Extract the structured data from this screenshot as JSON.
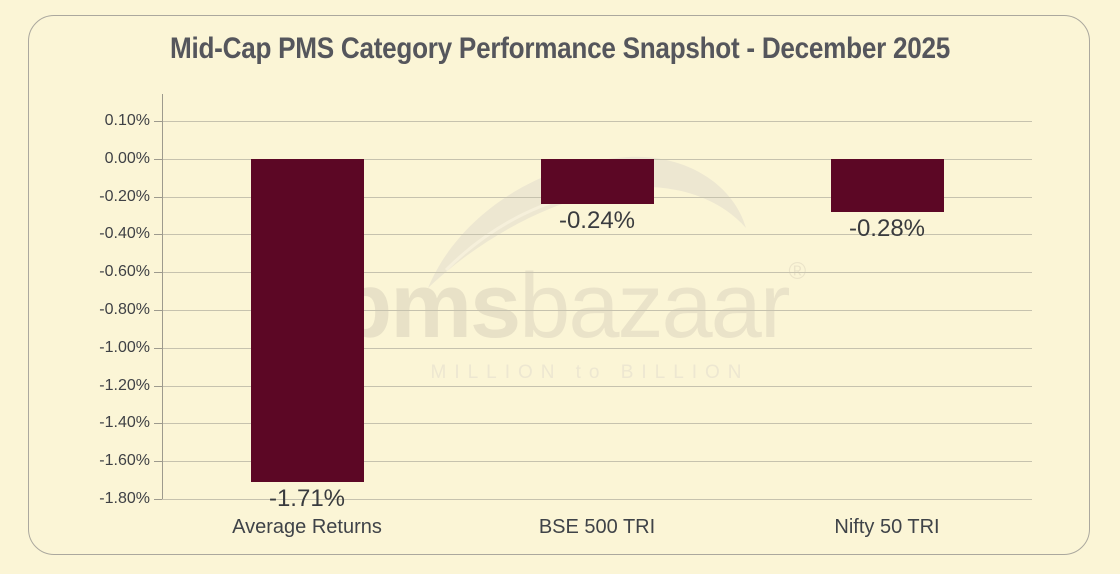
{
  "title": "Mid-Cap PMS Category Performance Snapshot - December 2025",
  "watermark": {
    "brand_bold": "pms",
    "brand_light": "bazaar",
    "registered_mark": "®",
    "tagline": "MILLION to BILLION"
  },
  "colors": {
    "background": "#FBF5D6",
    "panel_border": "#ABA89E",
    "bar": "#5C0725",
    "title_text": "#55565C",
    "axis_text": "#3F4145",
    "label_text": "#393B3E",
    "category_text": "#3F4348",
    "gridline": "#C6C2AE",
    "axis_line": "#9D9A8D",
    "watermark_text": "#E8E1C7",
    "watermark_tagline": "#EDE7D1"
  },
  "chart_data": {
    "type": "bar",
    "title": "Mid-Cap PMS Category Performance Snapshot - December 2025",
    "categories": [
      "Average Returns",
      "BSE 500 TRI",
      "Nifty 50 TRI"
    ],
    "values": [
      -1.71,
      -0.24,
      -0.28
    ],
    "data_labels": [
      "-1.71%",
      "-0.24%",
      "-0.28%"
    ],
    "unit": "%",
    "xlabel": "",
    "ylabel": "",
    "y_ticks": [
      "0.10%",
      "0.00%",
      "-0.20%",
      "-0.40%",
      "-0.60%",
      "-0.80%",
      "-1.00%",
      "-1.20%",
      "-1.40%",
      "-1.60%",
      "-1.80%"
    ],
    "y_tick_values": [
      0.1,
      0.0,
      -0.2,
      -0.4,
      -0.6,
      -0.8,
      -1.0,
      -1.2,
      -1.4,
      -1.6,
      -1.8
    ],
    "ylim": [
      0.1,
      -1.8
    ],
    "grid": true,
    "legend": false,
    "bar_color": "#5C0725"
  }
}
